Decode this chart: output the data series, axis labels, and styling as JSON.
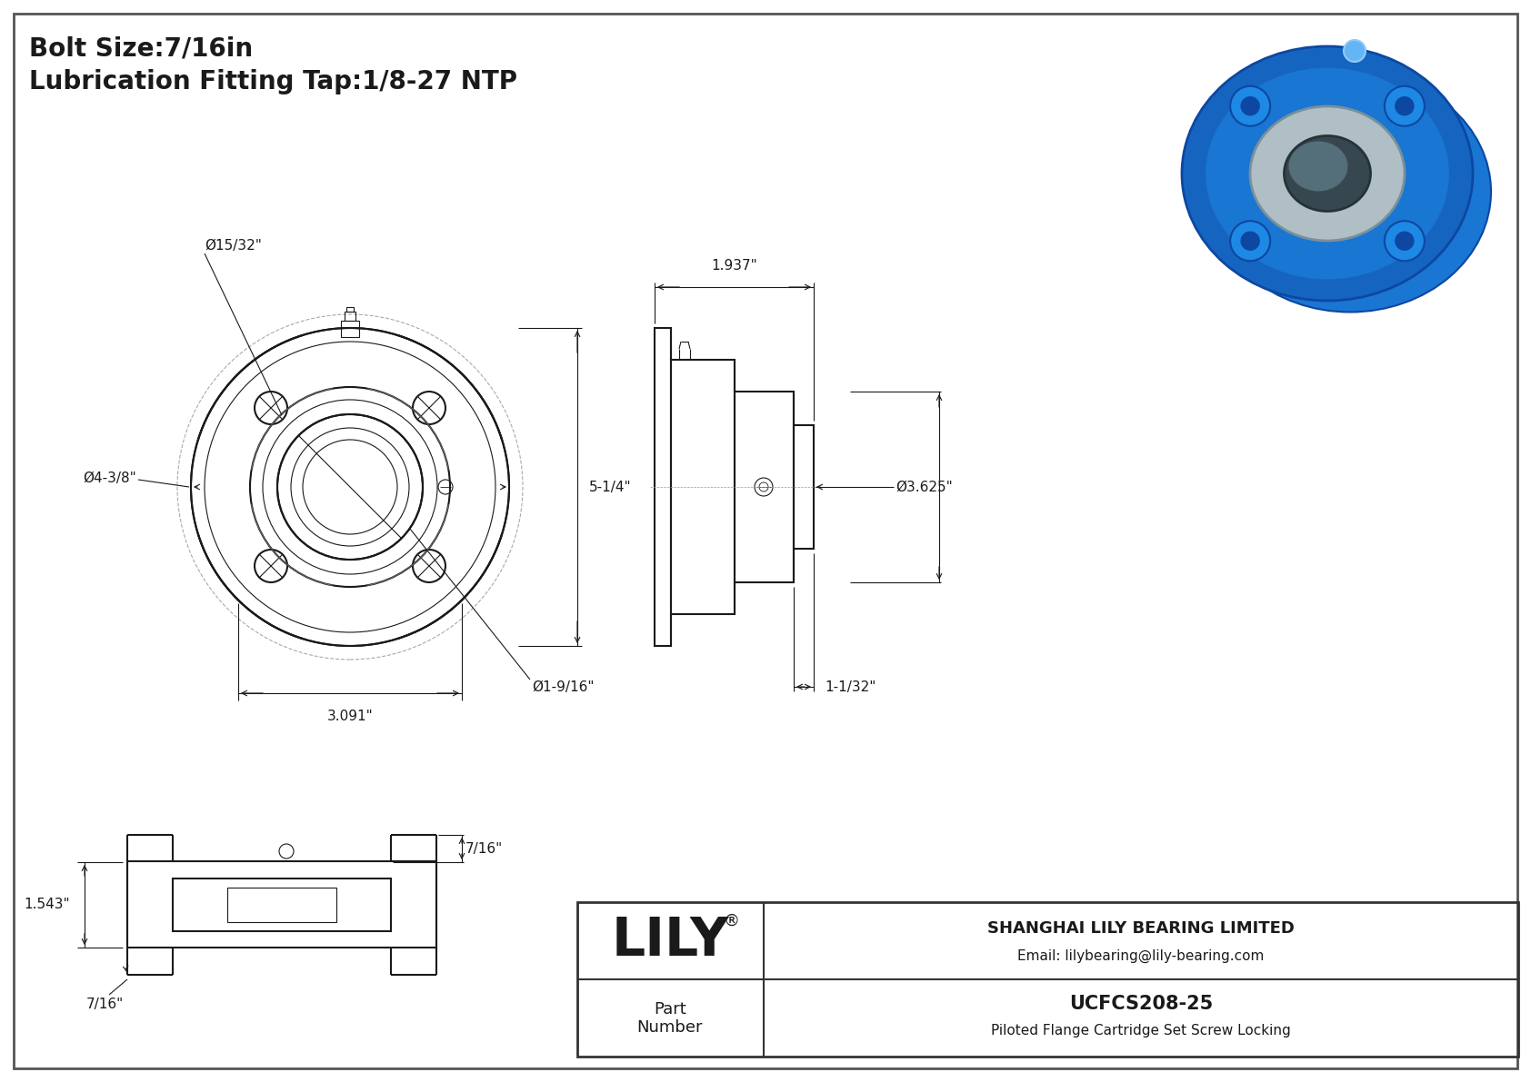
{
  "bg_color": "#ffffff",
  "line_color": "#1a1a1a",
  "dim_color": "#1a1a1a",
  "gray_color": "#888888",
  "title_line1": "Bolt Size:7/16in",
  "title_line2": "Lubrication Fitting Tap:1/8-27 NTP",
  "company": "SHANGHAI LILY BEARING LIMITED",
  "email": "Email: lilybearing@lily-bearing.com",
  "part_label": "Part\nNumber",
  "part_number": "UCFCS208-25",
  "part_desc": "Piloted Flange Cartridge Set Screw Locking",
  "lily_text": "LILY",
  "reg_mark": "®",
  "dim_d_bolt": "Ø15/32\"",
  "dim_d_flange": "Ø4-3/8\"",
  "dim_height": "5-1/4\"",
  "dim_width": "3.091\"",
  "dim_d_bore": "Ø1-9/16\"",
  "dim_side_width": "1.937\"",
  "dim_side_depth": "1-1/32\"",
  "dim_d_side": "Ø3.625\"",
  "dim_bot_height": "1.543\"",
  "dim_bot_width": "7/16\"",
  "dim_bot_bottom": "7/16\""
}
